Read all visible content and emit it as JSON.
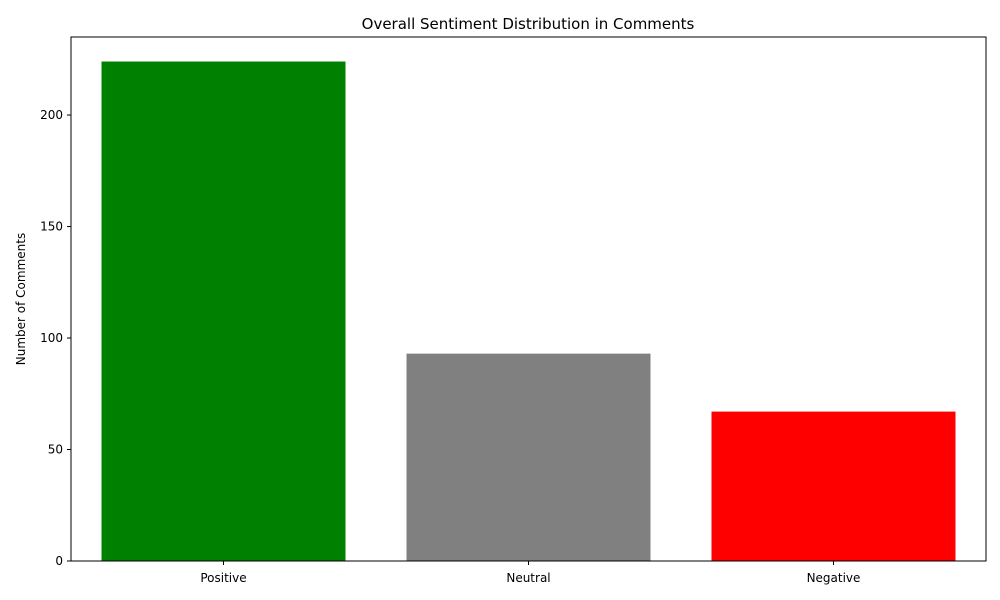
{
  "chart_data": {
    "type": "bar",
    "title": "Overall Sentiment Distribution in Comments",
    "xlabel": "",
    "ylabel": "Number of Comments",
    "categories": [
      "Positive",
      "Neutral",
      "Negative"
    ],
    "values": [
      224,
      93,
      67
    ],
    "colors": [
      "#008000",
      "#808080",
      "#ff0000"
    ],
    "ylim": [
      0,
      235
    ],
    "yticks": [
      0,
      50,
      100,
      150,
      200
    ],
    "grid": false,
    "legend": "none"
  }
}
